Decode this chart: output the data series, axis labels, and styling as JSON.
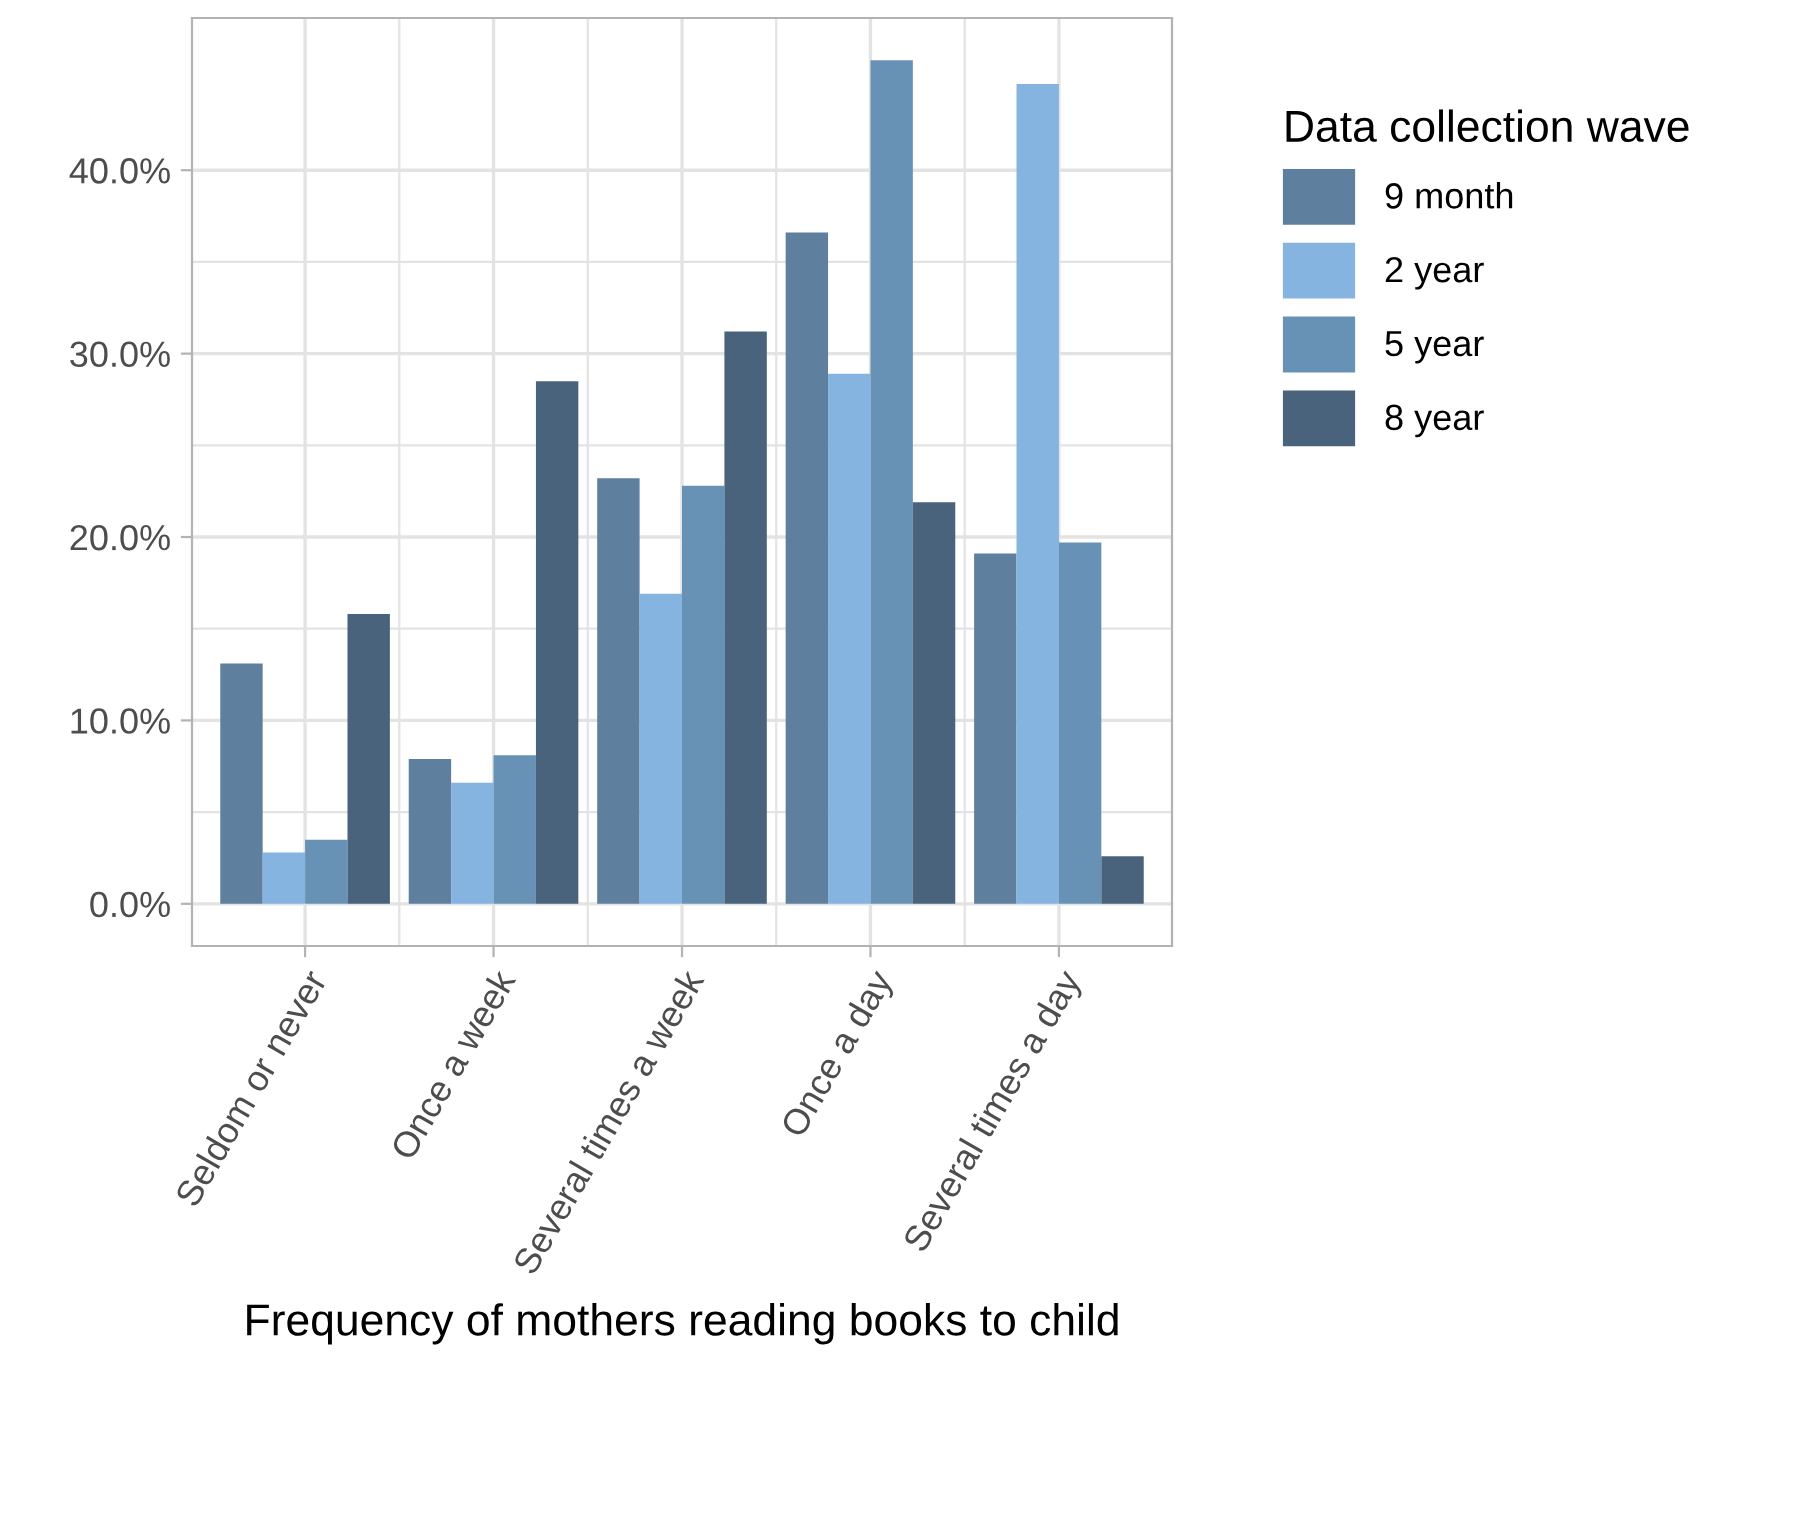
{
  "chart_data": {
    "type": "bar",
    "xlabel": "Frequency of mothers reading books to child",
    "legend_title": "Data collection wave",
    "categories": [
      "Seldom or never",
      "Once a week",
      "Several times a week",
      "Once a day",
      "Several times a day"
    ],
    "series": [
      {
        "name": "9 month",
        "color": "#5e7f9e",
        "values": [
          13.1,
          7.9,
          23.2,
          36.6,
          19.1
        ]
      },
      {
        "name": "2 year",
        "color": "#85b4e0",
        "values": [
          2.8,
          6.6,
          16.9,
          28.9,
          44.7
        ]
      },
      {
        "name": "5 year",
        "color": "#6892b5",
        "values": [
          3.5,
          8.1,
          22.8,
          46.0,
          19.7
        ]
      },
      {
        "name": "8 year",
        "color": "#48637b",
        "values": [
          15.8,
          28.5,
          31.2,
          21.9,
          2.6
        ]
      }
    ],
    "ylim": [
      -2.3,
      48.3
    ],
    "yticks": [
      {
        "value": 0,
        "label": "0.0%"
      },
      {
        "value": 10,
        "label": "10.0%"
      },
      {
        "value": 20,
        "label": "20.0%"
      },
      {
        "value": 30,
        "label": "30.0%"
      },
      {
        "value": 40,
        "label": "40.0%"
      }
    ],
    "grid": true,
    "legend": "right"
  }
}
